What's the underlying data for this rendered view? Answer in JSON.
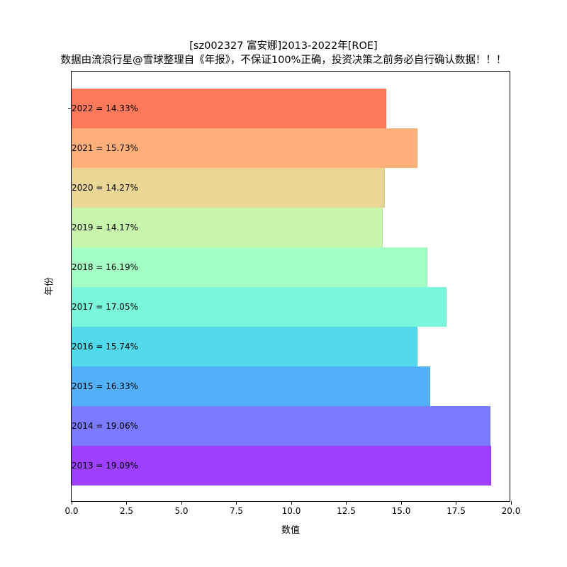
{
  "chart_data": {
    "type": "bar",
    "orientation": "horizontal",
    "title": "[sz002327 富安娜]2013-2022年[ROE]",
    "subtitle": "数据由流浪行星@雪球整理自《年报》，不保证100%正确，投资决策之前务必自行确认数据！！！",
    "xlabel": "数值",
    "ylabel": "年份",
    "xlim": [
      0,
      20
    ],
    "x_ticks": [
      "0.0",
      "2.5",
      "5.0",
      "7.5",
      "10.0",
      "12.5",
      "15.0",
      "17.5",
      "20.0"
    ],
    "grid": false,
    "legend": null,
    "categories": [
      "2022",
      "2021",
      "2020",
      "2019",
      "2018",
      "2017",
      "2016",
      "2015",
      "2014",
      "2013"
    ],
    "values": [
      14.33,
      15.73,
      14.27,
      14.17,
      16.19,
      17.05,
      15.74,
      16.33,
      19.06,
      19.09
    ],
    "bar_labels": [
      "2022 = 14.33%",
      "2021 = 15.73%",
      "2020 = 14.27%",
      "2019 = 14.17%",
      "2018 = 16.19%",
      "2017 = 17.05%",
      "2016 = 15.74%",
      "2015 = 16.33%",
      "2014 = 19.06%",
      "2013 = 19.09%"
    ],
    "colors": [
      "#ff7a5b",
      "#ffaf7a",
      "#ead796",
      "#c8f5ac",
      "#a3ffc3",
      "#7af7da",
      "#52d9ea",
      "#52b0f8",
      "#7a7bff",
      "#9d40ff"
    ]
  }
}
